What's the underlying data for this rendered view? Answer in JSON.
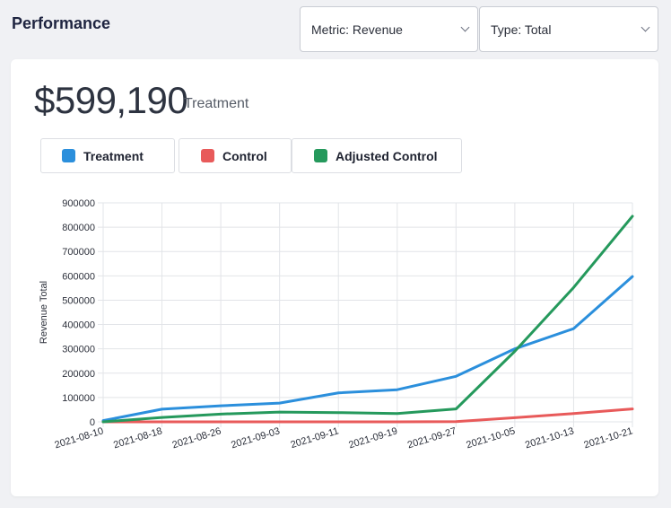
{
  "page": {
    "title": "Performance"
  },
  "filters": {
    "metric": "Metric: Revenue",
    "type": "Type: Total"
  },
  "summary": {
    "value": "$599,190",
    "label": "Treatment"
  },
  "colors": {
    "treatment": "#2b8fdc",
    "control": "#e85a5a",
    "adjusted_control": "#25995c",
    "grid": "#e2e4e8"
  },
  "chart_data": {
    "type": "line",
    "ylabel": "Revenue Total",
    "xlabel": "",
    "ylim": [
      0,
      900000
    ],
    "yticks": [
      0,
      100000,
      200000,
      300000,
      400000,
      500000,
      600000,
      700000,
      800000,
      900000
    ],
    "ytick_labels": [
      "0",
      "100000",
      "200000",
      "300000",
      "400000",
      "500000",
      "600000",
      "700000",
      "800000",
      "900000"
    ],
    "x": [
      "2021-08-10",
      "2021-08-18",
      "2021-08-26",
      "2021-09-03",
      "2021-09-11",
      "2021-09-19",
      "2021-09-27",
      "2021-10-05",
      "2021-10-13",
      "2021-10-21"
    ],
    "grid": true,
    "legend": "top-left",
    "series": [
      {
        "name": "Treatment",
        "color": "#2b8fdc",
        "values": [
          5000,
          52000,
          66000,
          77000,
          119000,
          132000,
          187000,
          300000,
          383000,
          597000
        ]
      },
      {
        "name": "Control",
        "color": "#e85a5a",
        "values": [
          0,
          0,
          0,
          0,
          0,
          0,
          1000,
          17000,
          34000,
          53000
        ]
      },
      {
        "name": "Adjusted Control",
        "color": "#25995c",
        "values": [
          0,
          18000,
          32000,
          40000,
          38000,
          34000,
          53000,
          290000,
          552000,
          845000
        ]
      }
    ]
  }
}
